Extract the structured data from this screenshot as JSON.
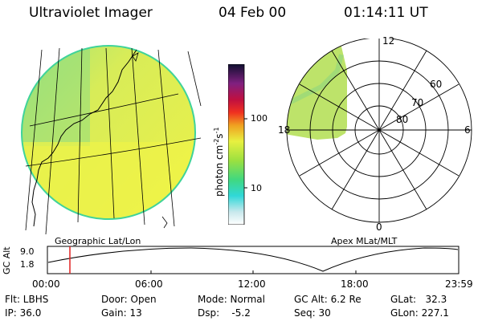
{
  "header": {
    "title": "Ultraviolet Imager",
    "date": "04 Feb 00",
    "time": "01:14:11 UT"
  },
  "geo_panel": {
    "label": "Geographic Lat/Lon"
  },
  "colorbar": {
    "unit": "photon cm",
    "unit_sup1": "-2",
    "unit_mid": "s",
    "unit_sup2": "-1",
    "tick_100": "100",
    "tick_10": "10"
  },
  "polar_panel": {
    "label": "Apex MLat/MLT",
    "mlt_12": "12",
    "mlt_18": "18",
    "mlt_6": "6",
    "mlt_0": "0",
    "lat_60": "60",
    "lat_70": "70",
    "lat_80": "80"
  },
  "altitude_plot": {
    "axis_label": "GC Alt",
    "y_max": "9.0",
    "y_min": "1.8",
    "x_ticks": [
      "00:00",
      "06:00",
      "12:00",
      "18:00",
      "23:59"
    ]
  },
  "info": {
    "flt": "Flt: LBHS",
    "ip": "IP: 36.0",
    "door": "Door: Open",
    "gain": "Gain: 13",
    "mode": "Mode: Normal",
    "dsp": "Dsp:    -5.2",
    "gcalt": "GC Alt: 6.2 Re",
    "seq": "Seq: 30",
    "glat": "GLat:   32.3",
    "glon": "GLon: 227.1"
  },
  "colors": {
    "disk_fill": "#e6f048",
    "disk_band": "#c8e85a",
    "disk_edge": "#44d890",
    "marker": "#e02020"
  }
}
